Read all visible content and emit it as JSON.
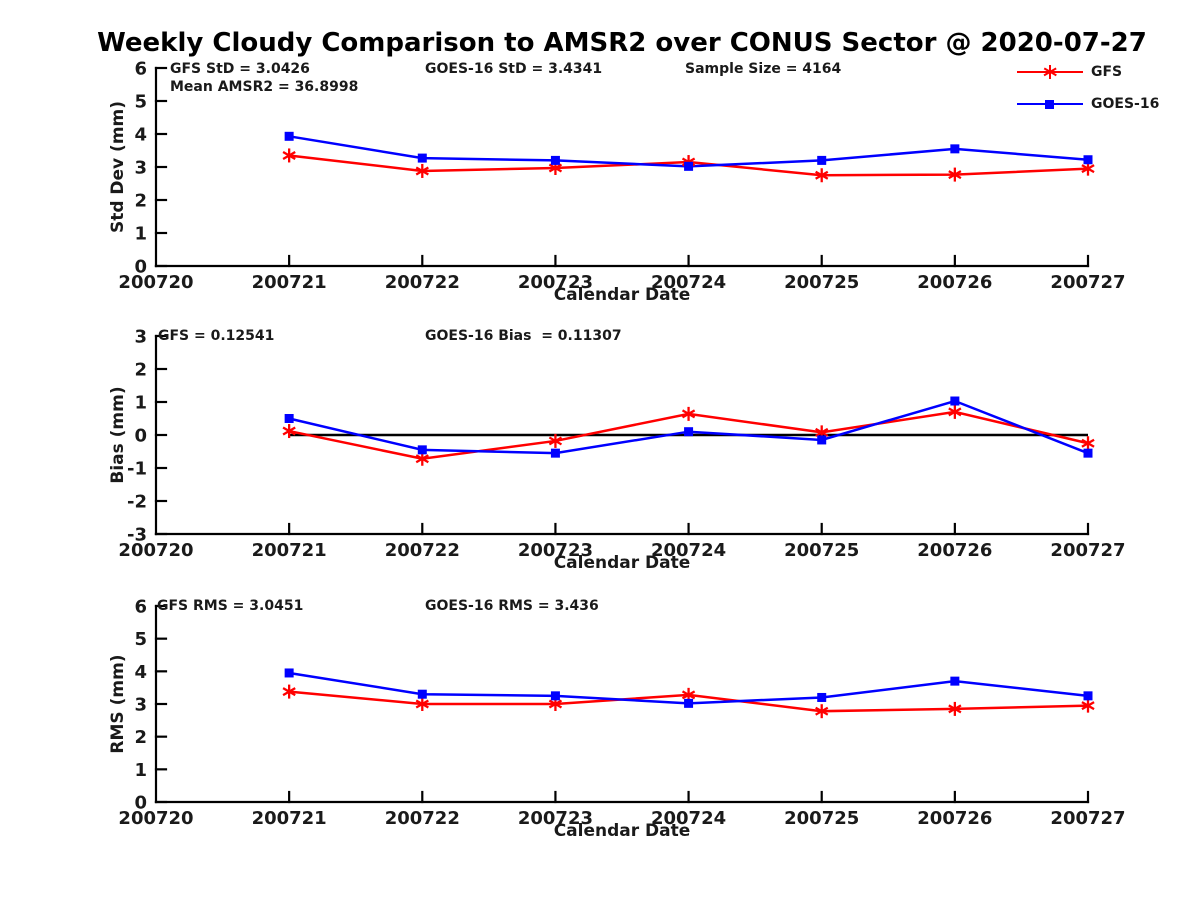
{
  "title": "Weekly Cloudy Comparison to AMSR2 over CONUS Sector @ 2020-07-27",
  "colors": {
    "gfs": "#ff0000",
    "goes16": "#0000ff",
    "axis": "#000000",
    "text": "#1a1a1a"
  },
  "legend": {
    "position": "top-right",
    "items": [
      {
        "label": "GFS",
        "color": "#ff0000",
        "marker": "asterisk"
      },
      {
        "label": "GOES-16",
        "color": "#0000ff",
        "marker": "square"
      }
    ]
  },
  "x_categories": [
    "200720",
    "200721",
    "200722",
    "200723",
    "200724",
    "200725",
    "200726",
    "200727"
  ],
  "chart_data": [
    {
      "type": "line",
      "title": "",
      "ylabel": "Std Dev (mm)",
      "xlabel": "Calendar Date",
      "ylim": [
        0,
        6
      ],
      "y_ticks": [
        0,
        1,
        2,
        3,
        4,
        5,
        6
      ],
      "grid": false,
      "zero_line": false,
      "x_tick_labels": [
        "200720",
        "200721",
        "200722",
        "200723",
        "200724",
        "200725",
        "200726",
        "200727"
      ],
      "x": [
        200721,
        200722,
        200723,
        200724,
        200725,
        200726,
        200727
      ],
      "series": [
        {
          "name": "GFS",
          "color": "#ff0000",
          "marker": "asterisk",
          "values": [
            3.35,
            2.88,
            2.97,
            3.15,
            2.75,
            2.77,
            2.95
          ]
        },
        {
          "name": "GOES-16",
          "color": "#0000ff",
          "marker": "square",
          "values": [
            3.93,
            3.27,
            3.2,
            3.02,
            3.2,
            3.55,
            3.22
          ]
        }
      ],
      "annotations": [
        {
          "text": "GFS StD = 3.0426"
        },
        {
          "text": "Mean AMSR2 = 36.8998"
        },
        {
          "text": "GOES-16 StD = 3.4341"
        },
        {
          "text": "Sample Size = 4164"
        }
      ]
    },
    {
      "type": "line",
      "title": "",
      "ylabel": "Bias (mm)",
      "xlabel": "Calendar Date",
      "ylim": [
        -3,
        3
      ],
      "y_ticks": [
        -3,
        -2,
        -1,
        0,
        1,
        2,
        3
      ],
      "grid": false,
      "zero_line": true,
      "x_tick_labels": [
        "200720",
        "200721",
        "200722",
        "200723",
        "200724",
        "200725",
        "200726",
        "200727"
      ],
      "x": [
        200721,
        200722,
        200723,
        200724,
        200725,
        200726,
        200727
      ],
      "series": [
        {
          "name": "GFS",
          "color": "#ff0000",
          "marker": "asterisk",
          "values": [
            0.12,
            -0.72,
            -0.18,
            0.64,
            0.08,
            0.7,
            -0.25
          ]
        },
        {
          "name": "GOES-16",
          "color": "#0000ff",
          "marker": "square",
          "values": [
            0.5,
            -0.45,
            -0.55,
            0.1,
            -0.15,
            1.03,
            -0.55
          ]
        }
      ],
      "annotations": [
        {
          "text": "GFS = 0.12541"
        },
        {
          "text": "GOES-16 Bias  = 0.11307"
        }
      ]
    },
    {
      "type": "line",
      "title": "",
      "ylabel": "RMS (mm)",
      "xlabel": "Calendar Date",
      "ylim": [
        0,
        6
      ],
      "y_ticks": [
        0,
        1,
        2,
        3,
        4,
        5,
        6
      ],
      "grid": false,
      "zero_line": false,
      "x_tick_labels": [
        "200720",
        "200721",
        "200722",
        "200723",
        "200724",
        "200725",
        "200726",
        "200727"
      ],
      "x": [
        200721,
        200722,
        200723,
        200724,
        200725,
        200726,
        200727
      ],
      "series": [
        {
          "name": "GFS",
          "color": "#ff0000",
          "marker": "asterisk",
          "values": [
            3.38,
            3.0,
            3.0,
            3.28,
            2.78,
            2.85,
            2.95
          ]
        },
        {
          "name": "GOES-16",
          "color": "#0000ff",
          "marker": "square",
          "values": [
            3.95,
            3.3,
            3.25,
            3.02,
            3.2,
            3.7,
            3.25
          ]
        }
      ],
      "annotations": [
        {
          "text": "GFS RMS = 3.0451"
        },
        {
          "text": "GOES-16 RMS = 3.436"
        }
      ]
    }
  ]
}
